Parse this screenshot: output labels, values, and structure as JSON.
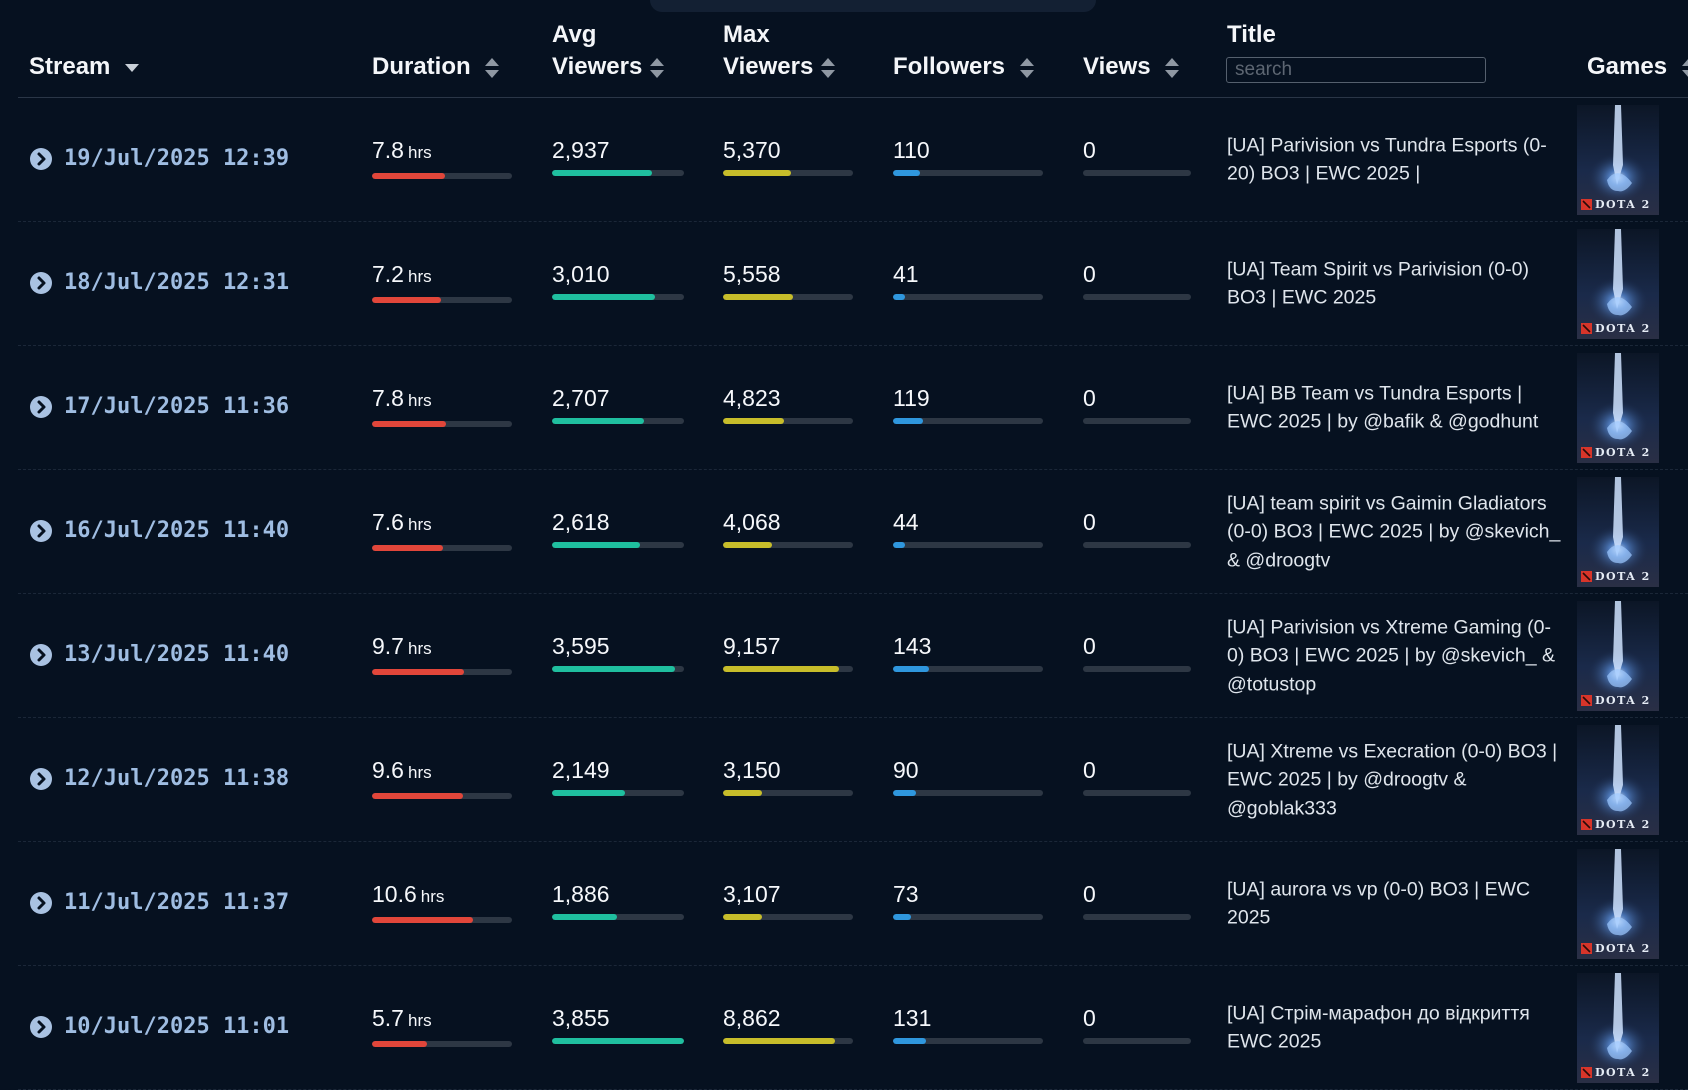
{
  "colors": {
    "background": "#061120",
    "duration_bar": "#e1463a",
    "avg_viewers_bar": "#1fbf9f",
    "max_viewers_bar": "#c7bd2a",
    "followers_bar": "#2f97de",
    "date_text": "#9fbde2"
  },
  "header": {
    "stream": "Stream",
    "duration": "Duration",
    "avg_viewers_1": "Avg",
    "avg_viewers_2": "Viewers",
    "max_viewers_1": "Max",
    "max_viewers_2": "Viewers",
    "followers": "Followers",
    "views": "Views",
    "title": "Title",
    "title_search_placeholder": "search",
    "games": "Games"
  },
  "rows": [
    {
      "date": "19/Jul/2025 12:39",
      "duration": "7.8",
      "duration_unit": "hrs",
      "duration_level": 0.52,
      "avg_viewers": "2,937",
      "avg_level": 0.76,
      "max_viewers": "5,370",
      "max_level": 0.52,
      "followers": "110",
      "followers_level": 0.18,
      "views": "0",
      "views_level": 0,
      "title": "[UA] Parivision vs Tundra Esports (0-20) BO3 | EWC 2025 |",
      "game": "DOTA 2"
    },
    {
      "date": "18/Jul/2025 12:31",
      "duration": "7.2",
      "duration_unit": "hrs",
      "duration_level": 0.49,
      "avg_viewers": "3,010",
      "avg_level": 0.78,
      "max_viewers": "5,558",
      "max_level": 0.54,
      "followers": "41",
      "followers_level": 0.08,
      "views": "0",
      "views_level": 0,
      "title": "[UA] Team Spirit vs Parivision (0-0) BO3 | EWC 2025",
      "game": "DOTA 2"
    },
    {
      "date": "17/Jul/2025 11:36",
      "duration": "7.8",
      "duration_unit": "hrs",
      "duration_level": 0.53,
      "avg_viewers": "2,707",
      "avg_level": 0.7,
      "max_viewers": "4,823",
      "max_level": 0.47,
      "followers": "119",
      "followers_level": 0.2,
      "views": "0",
      "views_level": 0,
      "title": "[UA] BB Team vs Tundra Esports | EWC 2025 | by @bafik & @godhunt",
      "game": "DOTA 2"
    },
    {
      "date": "16/Jul/2025 11:40",
      "duration": "7.6",
      "duration_unit": "hrs",
      "duration_level": 0.51,
      "avg_viewers": "2,618",
      "avg_level": 0.67,
      "max_viewers": "4,068",
      "max_level": 0.38,
      "followers": "44",
      "followers_level": 0.08,
      "views": "0",
      "views_level": 0,
      "title": "[UA] team spirit vs Gaimin Gladiators (0-0) BO3 | EWC 2025 | by @skevich_ & @droogtv",
      "game": "DOTA 2"
    },
    {
      "date": "13/Jul/2025 11:40",
      "duration": "9.7",
      "duration_unit": "hrs",
      "duration_level": 0.66,
      "avg_viewers": "3,595",
      "avg_level": 0.93,
      "max_viewers": "9,157",
      "max_level": 0.89,
      "followers": "143",
      "followers_level": 0.24,
      "views": "0",
      "views_level": 0,
      "title": "[UA] Parivision vs Xtreme Gaming (0-0) BO3 | EWC 2025 | by @skevich_ & @totustop",
      "game": "DOTA 2"
    },
    {
      "date": "12/Jul/2025 11:38",
      "duration": "9.6",
      "duration_unit": "hrs",
      "duration_level": 0.65,
      "avg_viewers": "2,149",
      "avg_level": 0.55,
      "max_viewers": "3,150",
      "max_level": 0.3,
      "followers": "90",
      "followers_level": 0.15,
      "views": "0",
      "views_level": 0,
      "title": "[UA] Xtreme vs Execration (0-0) BO3 | EWC 2025 | by @droogtv & @goblak333",
      "game": "DOTA 2"
    },
    {
      "date": "11/Jul/2025 11:37",
      "duration": "10.6",
      "duration_unit": "hrs",
      "duration_level": 0.72,
      "avg_viewers": "1,886",
      "avg_level": 0.49,
      "max_viewers": "3,107",
      "max_level": 0.3,
      "followers": "73",
      "followers_level": 0.12,
      "views": "0",
      "views_level": 0,
      "title": "[UA] aurora vs vp (0-0) BO3 | EWC 2025",
      "game": "DOTA 2"
    },
    {
      "date": "10/Jul/2025 11:01",
      "duration": "5.7",
      "duration_unit": "hrs",
      "duration_level": 0.39,
      "avg_viewers": "3,855",
      "avg_level": 1.0,
      "max_viewers": "8,862",
      "max_level": 0.86,
      "followers": "131",
      "followers_level": 0.22,
      "views": "0",
      "views_level": 0,
      "title": "[UA] Стрім-марафон до відкриття EWC 2025",
      "game": "DOTA 2"
    }
  ]
}
